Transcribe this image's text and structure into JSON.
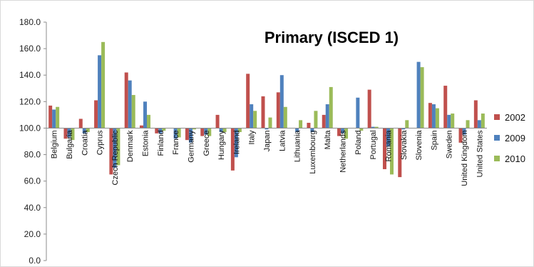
{
  "chart_data": {
    "type": "bar",
    "title": "Primary (ISCED 1)",
    "xlabel": "",
    "ylabel": "",
    "ylim": [
      0,
      180
    ],
    "baseline": 100,
    "yticks": [
      0,
      20,
      40,
      60,
      80,
      100,
      120,
      140,
      160,
      180
    ],
    "ytick_labels": [
      "0.0",
      "20.0",
      "40.0",
      "60.0",
      "80.0",
      "100.0",
      "120.0",
      "140.0",
      "160.0",
      "180.0"
    ],
    "grid": false,
    "legend_position": "right",
    "categories": [
      "Belgium",
      "Bulgaria",
      "Croatia",
      "Cyprus",
      "Czech Republic",
      "Denmark",
      "Estonia",
      "Finland",
      "France",
      "Germany",
      "Greece",
      "Hungary",
      "Ireland",
      "Italy",
      "Japan",
      "Latvia",
      "Lithuania",
      "Luxembourg",
      "Malta",
      "Netherlands",
      "Poland",
      "Portugal",
      "Romania",
      "Slovakia",
      "Slovenia",
      "Spain",
      "Sweden",
      "United Kingdom",
      "United States"
    ],
    "series": [
      {
        "name": "2002",
        "color": "#c0504d",
        "values": [
          117,
          92,
          107,
          121,
          65,
          142,
          102,
          96,
          100,
          91,
          94,
          110,
          68,
          141,
          124,
          127,
          null,
          104,
          110,
          94,
          null,
          129,
          69,
          63,
          null,
          119,
          132,
          89,
          121
        ]
      },
      {
        "name": "2009",
        "color": "#4f81bd",
        "values": [
          114,
          93,
          96,
          155,
          70,
          136,
          120,
          96,
          92,
          89,
          95,
          97,
          78,
          118,
          99,
          140,
          97,
          97,
          118,
          96,
          123,
          101,
          86,
          99,
          150,
          118,
          110,
          95,
          106
        ]
      },
      {
        "name": "2010",
        "color": "#9bbb59",
        "values": [
          116,
          91,
          97,
          165,
          72,
          125,
          110,
          98,
          93,
          99,
          94,
          97,
          97,
          113,
          108,
          116,
          106,
          113,
          131,
          92,
          98,
          101,
          65,
          106,
          146,
          115,
          111,
          106,
          111
        ]
      }
    ]
  }
}
